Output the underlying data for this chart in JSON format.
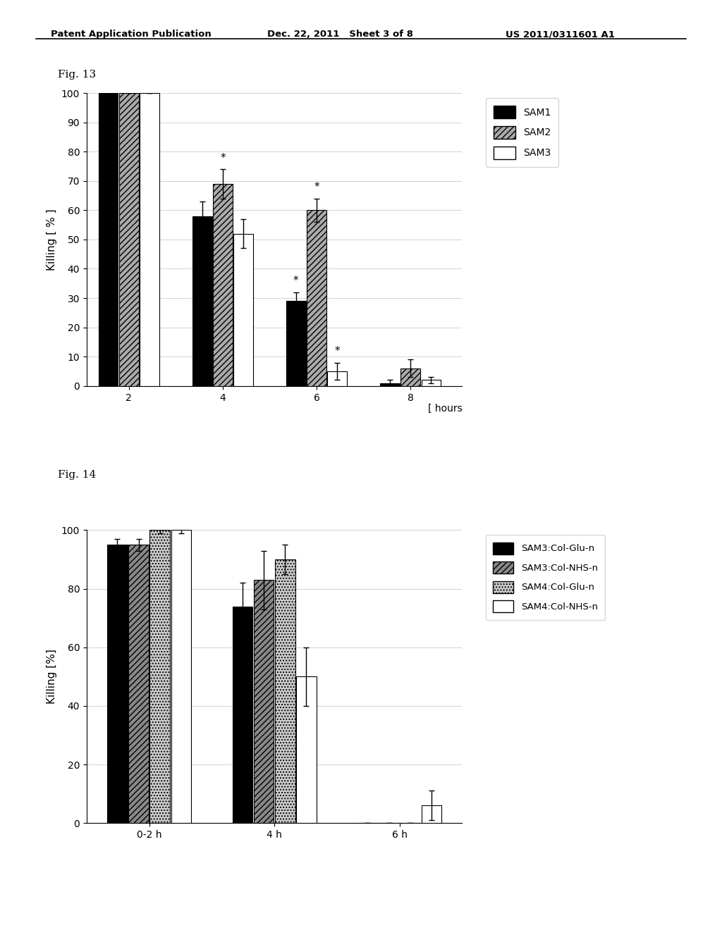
{
  "fig13": {
    "title": "Fig. 13",
    "xlabel": "[ hours",
    "ylabel": "Killing [ % ]",
    "xtick_labels": [
      "2",
      "4",
      "6",
      "8"
    ],
    "ylim": [
      0,
      100
    ],
    "yticks": [
      0,
      10,
      20,
      30,
      40,
      50,
      60,
      70,
      80,
      90,
      100
    ],
    "series": {
      "SAM1": {
        "values": [
          100,
          58,
          29,
          1
        ],
        "errors": [
          0,
          5,
          3,
          1
        ]
      },
      "SAM2": {
        "values": [
          100,
          69,
          60,
          6
        ],
        "errors": [
          0,
          5,
          4,
          3
        ]
      },
      "SAM3": {
        "values": [
          100,
          52,
          5,
          2
        ],
        "errors": [
          0,
          5,
          3,
          1
        ]
      }
    },
    "legend_labels": [
      "SAM1",
      "SAM2",
      "SAM3"
    ],
    "bar_width": 0.22,
    "group_positions": [
      0,
      1,
      2,
      3
    ]
  },
  "fig14": {
    "title": "Fig. 14",
    "ylabel": "Killing [%]",
    "xtick_labels": [
      "0-2 h",
      "4 h",
      "6 h"
    ],
    "ylim": [
      0,
      100
    ],
    "yticks": [
      0,
      20,
      40,
      60,
      80,
      100
    ],
    "series": {
      "SAM3:Col-Glu-n": {
        "values": [
          95,
          74,
          0
        ],
        "errors": [
          2,
          8,
          0
        ]
      },
      "SAM3:Col-NHS-n": {
        "values": [
          95,
          83,
          0
        ],
        "errors": [
          2,
          10,
          0
        ]
      },
      "SAM4:Col-Glu-n": {
        "values": [
          100,
          90,
          0
        ],
        "errors": [
          1,
          5,
          0
        ]
      },
      "SAM4:Col-NHS-n": {
        "values": [
          100,
          50,
          6
        ],
        "errors": [
          1,
          10,
          5
        ]
      }
    },
    "legend_labels": [
      "SAM3:Col-Glu-n",
      "SAM3:Col-NHS-n",
      "SAM4:Col-Glu-n",
      "SAM4:Col-NHS-n"
    ],
    "bar_width": 0.17,
    "group_positions": [
      0,
      1,
      2
    ]
  },
  "header_left": "Patent Application Publication",
  "header_center": "Dec. 22, 2011   Sheet 3 of 8",
  "header_right": "US 2011/0311601 A1",
  "bg_color": "#ffffff"
}
